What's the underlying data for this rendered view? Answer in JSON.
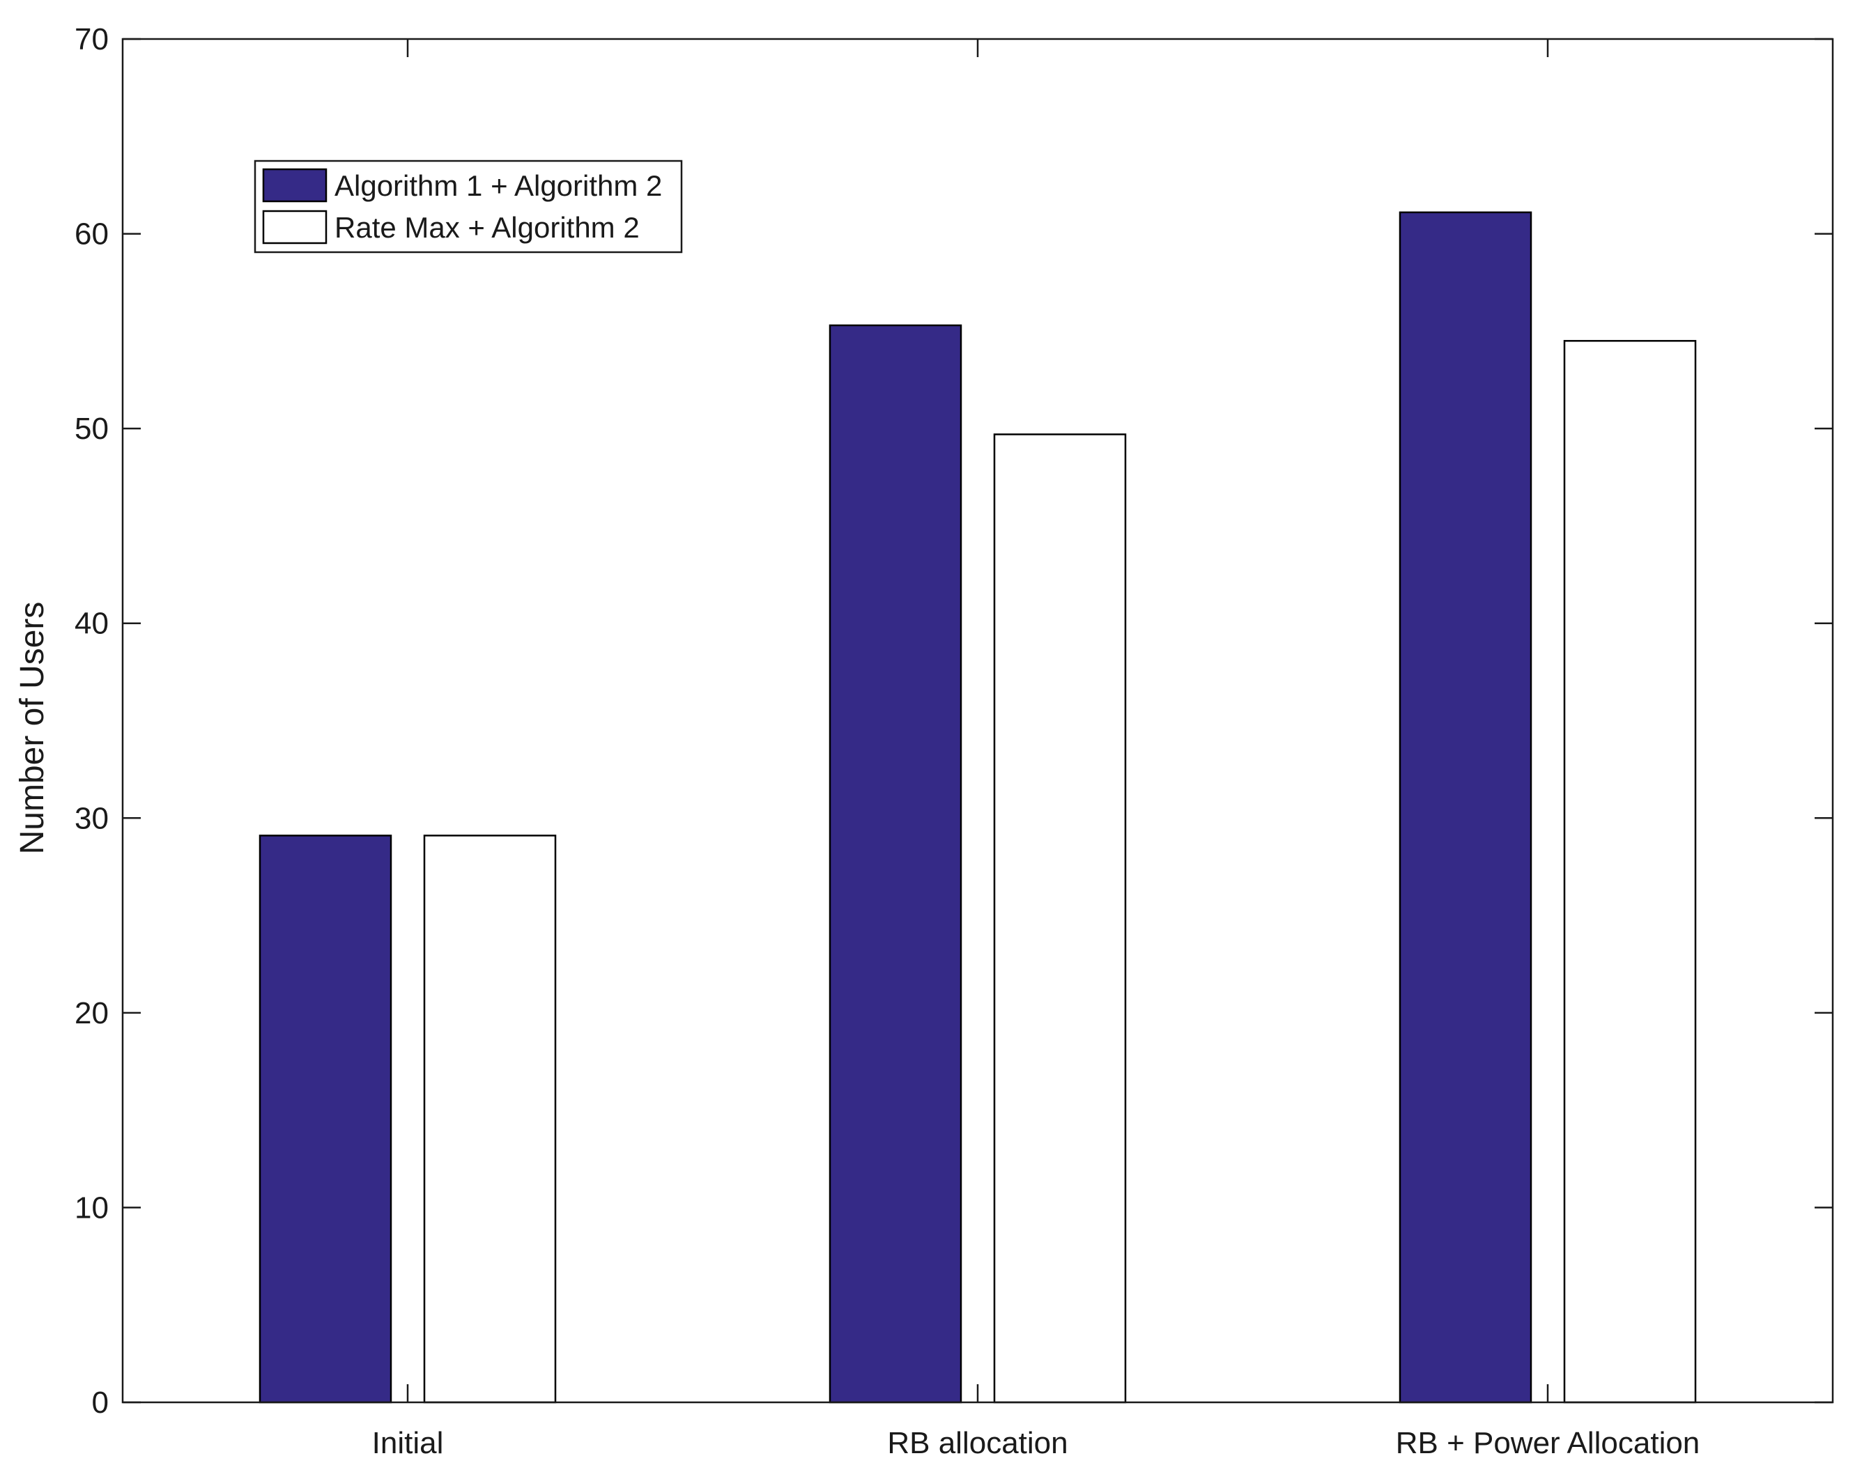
{
  "chart_data": {
    "type": "bar",
    "title": "",
    "xlabel": "",
    "ylabel": "Number of Users",
    "ylim": [
      0,
      70
    ],
    "yticks": [
      0,
      10,
      20,
      30,
      40,
      50,
      60,
      70
    ],
    "categories": [
      "Initial",
      "RB allocation",
      "RB + Power Allocation"
    ],
    "series": [
      {
        "name": "Algorithm 1 + Algorithm 2",
        "color": "#352a87",
        "values": [
          29.1,
          55.3,
          61.1
        ]
      },
      {
        "name": "Rate Max + Algorithm 2",
        "color": "#ffffff",
        "values": [
          29.1,
          49.7,
          54.5
        ]
      }
    ],
    "grid": false,
    "legend_position": "top-left"
  }
}
